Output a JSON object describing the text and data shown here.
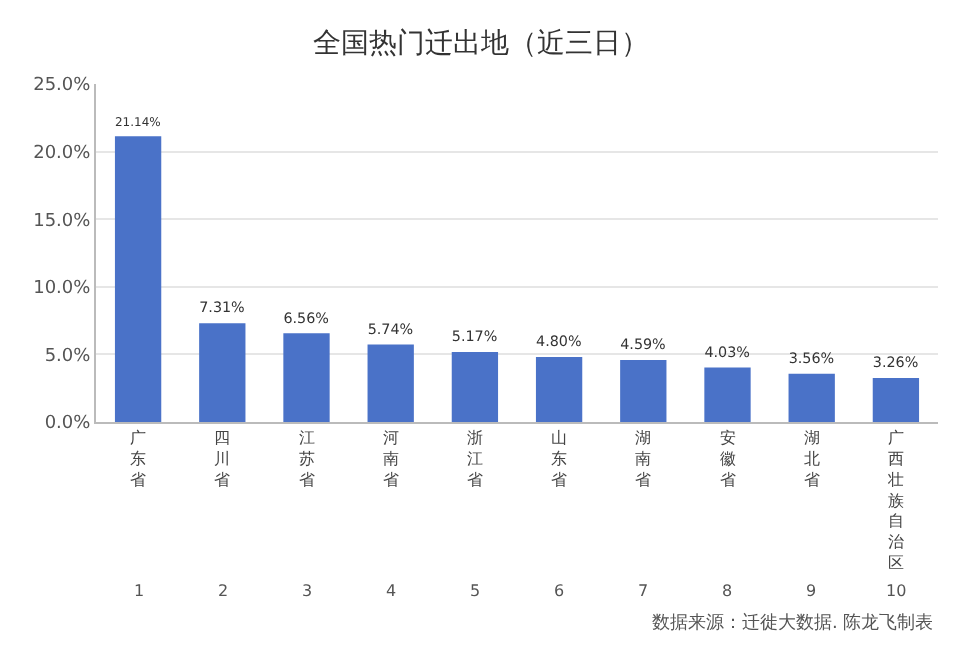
{
  "chart_data": {
    "type": "bar",
    "title": "全国热门迁出地（近三日）",
    "categories": [
      "广东省",
      "四川省",
      "江苏省",
      "河南省",
      "浙江省",
      "山东省",
      "湖南省",
      "安徽省",
      "湖北省",
      "广西壮族自治区"
    ],
    "values": [
      21.14,
      7.31,
      6.56,
      5.74,
      5.17,
      4.8,
      4.59,
      4.03,
      3.56,
      3.26
    ],
    "value_labels": [
      "21.14%",
      "7.31%",
      "6.56%",
      "5.74%",
      "5.17%",
      "4.80%",
      "4.59%",
      "4.03%",
      "3.56%",
      "3.26%"
    ],
    "color": "#4a72c8",
    "ylim": [
      0,
      25
    ],
    "yticks": [
      {
        "value": 0,
        "label": "0.0%"
      },
      {
        "value": 5,
        "label": "5.0%"
      },
      {
        "value": 10,
        "label": "10.0%"
      },
      {
        "value": 15,
        "label": "15.0%"
      },
      {
        "value": 20,
        "label": "20.0%"
      },
      {
        "value": 25,
        "label": "25.0%"
      }
    ],
    "grid": "y",
    "legend": false,
    "annotations": [
      "1",
      "2",
      "3",
      "4",
      "5",
      "6",
      "7",
      "8",
      "9",
      "10",
      "数据来源：迁徙大数据. 陈龙飞制表"
    ]
  }
}
